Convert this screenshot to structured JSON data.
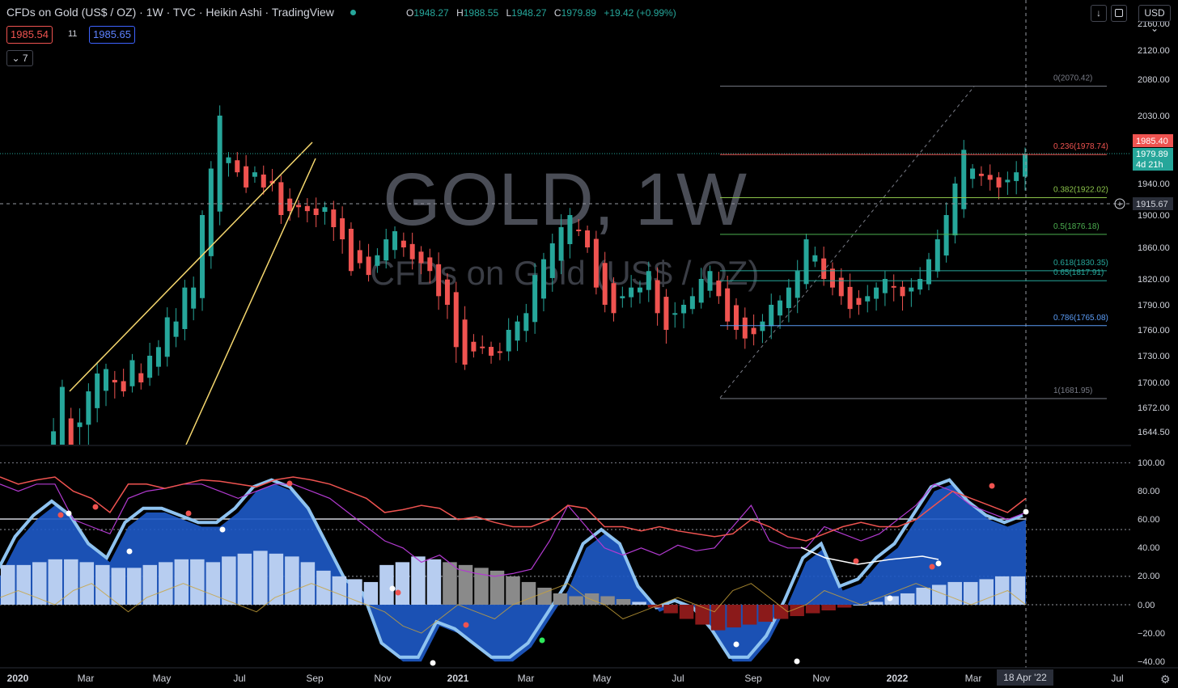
{
  "header": {
    "symbol": "CFDs on Gold (US$ / OZ)",
    "interval": "1W",
    "exchange": "TVC",
    "chart_type": "Heikin Ashi",
    "brand": "TradingView",
    "separator": "·",
    "open_label": "O",
    "open": "1948.27",
    "high_label": "H",
    "high": "1988.55",
    "low_label": "L",
    "low": "1948.27",
    "close_label": "C",
    "close": "1979.89",
    "change": "+19.42 (+0.99%)"
  },
  "trade": {
    "sell": "1985.54",
    "spread": "11",
    "buy": "1985.65"
  },
  "collapse": {
    "label": "⌄ 7"
  },
  "toolbar": {
    "currency": "USD ⌄",
    "download_icon": "↓"
  },
  "watermark": {
    "title": "GOLD, 1W",
    "subtitle": "CFDs on Gold (US$ / OZ)"
  },
  "colors": {
    "up": "#26a69a",
    "down": "#ef5350",
    "fill_blue": "#1e5ac8",
    "wave_light": "#8fc3f0",
    "fib_line": "#787b86"
  },
  "chart_data": {
    "type": "candlestick",
    "x_labels": [
      "2020",
      "Mar",
      "May",
      "Jul",
      "Sep",
      "Nov",
      "2021",
      "Mar",
      "May",
      "Jul",
      "Sep",
      "Nov",
      "2022",
      "Mar",
      "Jul"
    ],
    "x_cursor": "18 Apr '22",
    "price_axis": [
      "2160.00",
      "2120.00",
      "2080.00",
      "2030.00",
      "1980.00",
      "1940.00",
      "1900.00",
      "1860.00",
      "1820.00",
      "1790.00",
      "1760.00",
      "1730.00",
      "1700.00",
      "1672.00",
      "1644.50"
    ],
    "price_badges": [
      {
        "value": "1985.40",
        "color": "#ef5350"
      },
      {
        "value": "1979.89",
        "sub": "4d 21h",
        "color": "#26a69a"
      },
      {
        "value": "1915.67",
        "color": "#2a2e39"
      }
    ],
    "fib_levels": [
      {
        "label": "0(2070.42)",
        "price": 2070.42,
        "color": "#787b86"
      },
      {
        "label": "0.236(1978.74)",
        "price": 1978.74,
        "color": "#ef5350"
      },
      {
        "label": "0.382(1922.02)",
        "price": 1922.02,
        "color": "#8bc34a"
      },
      {
        "label": "0.5(1876.18)",
        "price": 1876.18,
        "color": "#4caf50"
      },
      {
        "label": "0.618(1830.35)",
        "price": 1830.35,
        "color": "#26a69a"
      },
      {
        "label": "0.65(1817.91)",
        "price": 1817.91,
        "color": "#26a69a"
      },
      {
        "label": "0.786(1765.08)",
        "price": 1765.08,
        "color": "#5b9cf6"
      },
      {
        "label": "1(1681.95)",
        "price": 1681.95,
        "color": "#787b86"
      }
    ],
    "candles_close": [
      1575,
      1585,
      1570,
      1620,
      1610,
      1645,
      1695,
      1640,
      1655,
      1690,
      1710,
      1715,
      1700,
      1690,
      1725,
      1700,
      1730,
      1740,
      1775,
      1770,
      1810,
      1810,
      1900,
      1960,
      2030,
      1975,
      1955,
      1935,
      1955,
      1935,
      1940,
      1900,
      1905,
      1910,
      1905,
      1900,
      1910,
      1885,
      1870,
      1830,
      1840,
      1825,
      1850,
      1870,
      1880,
      1860,
      1845,
      1840,
      1830,
      1800,
      1790,
      1740,
      1720,
      1735,
      1740,
      1730,
      1735,
      1760,
      1770,
      1780,
      1825,
      1845,
      1865,
      1885,
      1900,
      1880,
      1860,
      1810,
      1790,
      1780,
      1800,
      1810,
      1810,
      1830,
      1780,
      1760,
      1780,
      1790,
      1800,
      1820,
      1830,
      1800,
      1770,
      1760,
      1750,
      1755,
      1770,
      1790,
      1795,
      1810,
      1830,
      1870,
      1850,
      1820,
      1810,
      1800,
      1785,
      1790,
      1800,
      1810,
      1820,
      1810,
      1800,
      1810,
      1820,
      1845,
      1870,
      1900,
      1940,
      1985,
      1960,
      1950,
      1945,
      1935,
      1945,
      1955,
      1980
    ],
    "oscillator_axis": [
      "100.00",
      "80.00",
      "60.00",
      "40.00",
      "20.00",
      "0.00",
      "−20.00",
      "−40.00"
    ]
  }
}
